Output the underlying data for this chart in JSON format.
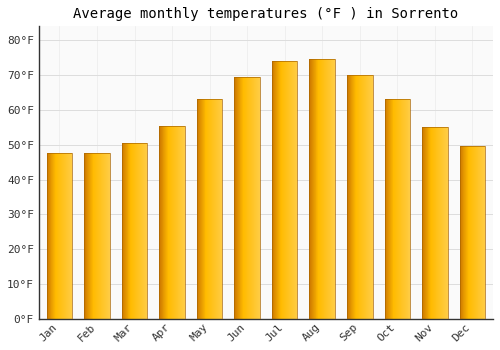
{
  "title": "Average monthly temperatures (°F ) in Sorrento",
  "months": [
    "Jan",
    "Feb",
    "Mar",
    "Apr",
    "May",
    "Jun",
    "Jul",
    "Aug",
    "Sep",
    "Oct",
    "Nov",
    "Dec"
  ],
  "values": [
    47.5,
    47.5,
    50.5,
    55.5,
    63,
    69.5,
    74,
    74.5,
    70,
    63,
    55,
    49.5
  ],
  "bar_color_center": "#FFB800",
  "bar_color_edge": "#E07800",
  "bar_color_highlight": "#FFD060",
  "background_color": "#FFFFFF",
  "plot_bg_color": "#FAFAFA",
  "grid_color": "#DDDDDD",
  "axis_color": "#333333",
  "yticks": [
    0,
    10,
    20,
    30,
    40,
    50,
    60,
    70,
    80
  ],
  "ytick_labels": [
    "0°F",
    "10°F",
    "20°F",
    "30°F",
    "40°F",
    "50°F",
    "60°F",
    "70°F",
    "80°F"
  ],
  "ylim": [
    0,
    84
  ],
  "title_fontsize": 10,
  "tick_fontsize": 8,
  "font_family": "monospace",
  "bar_width": 0.68
}
